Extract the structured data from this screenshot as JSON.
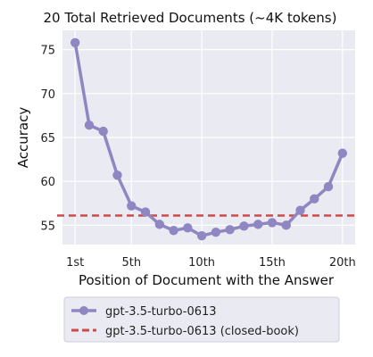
{
  "chart_data": {
    "type": "line",
    "title": "20 Total Retrieved Documents (~4K tokens)",
    "xlabel": "Position of Document with the Answer",
    "ylabel": "Accuracy",
    "x": [
      1,
      2,
      3,
      4,
      5,
      6,
      7,
      8,
      9,
      10,
      11,
      12,
      13,
      14,
      15,
      16,
      17,
      18,
      19,
      20
    ],
    "xticks": [
      1,
      5,
      10,
      15,
      20
    ],
    "xtick_labels": [
      "1st",
      "5th",
      "10th",
      "15th",
      "20th"
    ],
    "xlim": [
      0.1,
      20.9
    ],
    "yticks": [
      55,
      60,
      65,
      70,
      75
    ],
    "ylim": [
      52.8,
      77.2
    ],
    "grid": true,
    "legend_position": "bottom",
    "series": [
      {
        "name": "gpt-3.5-turbo-0613",
        "style": "solid-line-with-markers",
        "color": "#8f86c2",
        "values": [
          75.8,
          66.4,
          65.7,
          60.7,
          57.2,
          56.5,
          55.1,
          54.4,
          54.7,
          53.8,
          54.2,
          54.5,
          54.9,
          55.1,
          55.3,
          55.0,
          56.7,
          58.0,
          59.4,
          63.2
        ]
      },
      {
        "name": "gpt-3.5-turbo-0613 (closed-book)",
        "style": "dashed-horizontal",
        "color": "#cc4b4b",
        "value": 56.1
      }
    ],
    "background_color": "#eaeaf2"
  }
}
